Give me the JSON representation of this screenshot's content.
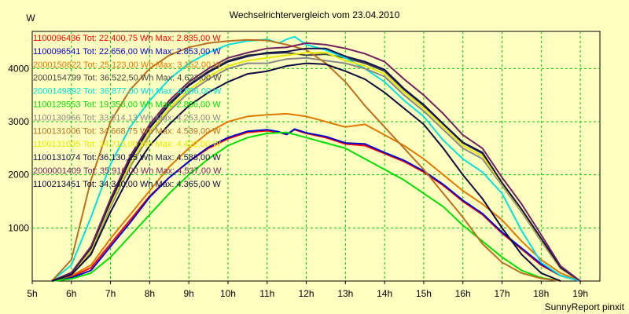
{
  "chart_data": {
    "type": "line",
    "title": "Wechselrichtervergleich vom 23.04.2010",
    "ylabel": "W",
    "xlabel": "",
    "footer": "SunnyReport pinxit",
    "xlim": [
      5,
      19.5
    ],
    "ylim": [
      0,
      4700
    ],
    "x_ticks": [
      5,
      6,
      7,
      8,
      9,
      10,
      11,
      12,
      13,
      14,
      15,
      16,
      17,
      18,
      19
    ],
    "x_tick_labels": [
      "5h",
      "6h",
      "7h",
      "8h",
      "9h",
      "10h",
      "11h",
      "12h",
      "13h",
      "14h",
      "15h",
      "16h",
      "17h",
      "18h",
      "19h"
    ],
    "y_ticks": [
      1000,
      2000,
      3000,
      4000
    ],
    "y_tick_labels": [
      "1000",
      "2000",
      "3000",
      "4000"
    ],
    "grid": true,
    "legend_position": "top-left",
    "series": [
      {
        "id": "1100096436",
        "label": "1100096436 Tot: 22.400,75 Wh Max: 2.835,00 W",
        "color": "#ff0000",
        "group": "low",
        "x": [
          5.5,
          6,
          6.5,
          7,
          7.5,
          8,
          8.5,
          9,
          9.5,
          10,
          10.5,
          11,
          11.3,
          11.5,
          11.7,
          12,
          12.5,
          13,
          13.5,
          14,
          14.5,
          15,
          15.5,
          16,
          16.5,
          17,
          17.5,
          18,
          18.5,
          19
        ],
        "y": [
          0,
          80,
          250,
          700,
          1150,
          1600,
          1950,
          2250,
          2500,
          2680,
          2800,
          2830,
          2800,
          2760,
          2850,
          2780,
          2700,
          2580,
          2550,
          2400,
          2250,
          2050,
          1800,
          1500,
          1250,
          900,
          600,
          300,
          100,
          0
        ]
      },
      {
        "id": "1100096541",
        "label": "1100096541 Tot: 22.656,00 Wh Max: 2.853,00 W",
        "color": "#0000cc",
        "group": "low",
        "x": [
          5.5,
          6,
          6.5,
          7,
          7.5,
          8,
          8.5,
          9,
          9.5,
          10,
          10.5,
          11,
          11.3,
          11.5,
          11.7,
          12,
          12.5,
          13,
          13.5,
          14,
          14.5,
          15,
          15.5,
          16,
          16.5,
          17,
          17.5,
          18,
          18.5,
          19
        ],
        "y": [
          0,
          60,
          200,
          650,
          1100,
          1580,
          1950,
          2250,
          2520,
          2700,
          2820,
          2850,
          2810,
          2760,
          2860,
          2790,
          2720,
          2600,
          2580,
          2420,
          2270,
          2070,
          1820,
          1520,
          1270,
          920,
          620,
          320,
          100,
          0
        ]
      },
      {
        "id": "2000150622",
        "label": "2000150622 Tot: 25.123,00 Wh Max: 3.152,00 W",
        "color": "#e07800",
        "group": "mid",
        "x": [
          5.5,
          6,
          6.5,
          7,
          7.5,
          8,
          8.5,
          9,
          9.5,
          10,
          10.5,
          11,
          11.5,
          12,
          12.5,
          13,
          13.5,
          14,
          14.5,
          15,
          15.5,
          16,
          16.5,
          17,
          17.5,
          18,
          18.5,
          19
        ],
        "y": [
          0,
          100,
          300,
          800,
          1250,
          1700,
          2150,
          2500,
          2800,
          3000,
          3100,
          3130,
          3150,
          3100,
          3000,
          2900,
          2950,
          2750,
          2550,
          2300,
          2000,
          1700,
          1450,
          1150,
          750,
          400,
          150,
          0
        ]
      },
      {
        "id": "2000154799",
        "label": "2000154799 Tot: 36.522,50 Wh Max: 4.623,00 W",
        "color": "#444444",
        "group": "high",
        "x": [
          5.5,
          6,
          6.5,
          7,
          7.5,
          8,
          8.5,
          9,
          9.5,
          10,
          10.5,
          11,
          11.5,
          12,
          12.5,
          13,
          13.5,
          14,
          14.5,
          15,
          15.5,
          16,
          16.5,
          17,
          17.5,
          18,
          18.5,
          19
        ],
        "y": [
          0,
          150,
          600,
          1500,
          2300,
          2900,
          3350,
          3700,
          3950,
          4150,
          4250,
          4280,
          4300,
          4250,
          4270,
          4200,
          4100,
          3950,
          3600,
          3300,
          2950,
          2600,
          2400,
          1850,
          1350,
          800,
          250,
          0
        ]
      },
      {
        "id": "2000149892",
        "label": "2000149892 Tot: 36.877,00 Wh Max: 4.696,00 W",
        "color": "#00e0e0",
        "group": "high",
        "x": [
          5.5,
          6,
          6.5,
          7,
          7.5,
          8,
          8.5,
          9,
          9.5,
          10,
          10.5,
          11,
          11.3,
          11.5,
          11.7,
          12,
          12.5,
          13,
          13.5,
          14,
          14.5,
          15,
          15.5,
          16,
          16.5,
          17,
          17.5,
          18,
          18.5,
          19
        ],
        "y": [
          0,
          300,
          1200,
          2200,
          2900,
          3400,
          3800,
          4100,
          4300,
          4450,
          4520,
          4550,
          4480,
          4550,
          4600,
          4450,
          4350,
          4200,
          4000,
          3750,
          3400,
          3100,
          2650,
          2300,
          2050,
          1650,
          950,
          350,
          100,
          0
        ]
      },
      {
        "id": "1100129553",
        "label": "1100129553 Tot: 19.353,00 Wh Max: 2.866,00 W",
        "color": "#00dd00",
        "group": "green",
        "x": [
          5.5,
          6,
          6.5,
          7,
          7.5,
          8,
          8.5,
          9,
          9.5,
          10,
          10.5,
          11,
          11.5,
          12,
          12.5,
          13,
          13.5,
          14,
          14.5,
          15,
          15.5,
          16,
          16.5,
          17,
          17.5,
          18,
          18.5
        ],
        "y": [
          0,
          40,
          150,
          450,
          850,
          1250,
          1650,
          2000,
          2300,
          2550,
          2700,
          2780,
          2800,
          2700,
          2600,
          2500,
          2300,
          2100,
          1900,
          1650,
          1400,
          1050,
          750,
          450,
          200,
          60,
          0
        ]
      },
      {
        "id": "1100130966",
        "label": "1100130966 Tot: 33.514,13 Wh Max: 4.253,00 W",
        "color": "#888888",
        "group": "high",
        "x": [
          5.5,
          6,
          6.5,
          7,
          7.5,
          8,
          8.5,
          9,
          9.5,
          10,
          10.5,
          11,
          11.5,
          12,
          12.5,
          13,
          13.5,
          14,
          14.5,
          15,
          15.5,
          16,
          16.5,
          17,
          17.5,
          18,
          18.5,
          19
        ],
        "y": [
          0,
          140,
          550,
          1400,
          2150,
          2750,
          3200,
          3550,
          3800,
          4000,
          4100,
          4100,
          4180,
          4200,
          4150,
          4100,
          4000,
          3850,
          3500,
          3200,
          2850,
          2500,
          2300,
          1800,
          1300,
          750,
          230,
          0
        ]
      },
      {
        "id": "1100131006",
        "label": "1100131006 Tot: 34.668,75 Wh Max: 4.539,00 W",
        "color": "#b87020",
        "group": "other",
        "x": [
          5.5,
          6,
          6.5,
          7,
          7.5,
          8,
          8.5,
          9,
          9.5,
          10,
          10.5,
          11,
          11.5,
          12,
          12.5,
          13,
          13.5,
          14,
          14.5,
          15,
          15.5,
          16,
          16.5,
          17,
          17.5,
          18,
          18.5
        ],
        "y": [
          0,
          400,
          1900,
          3000,
          3600,
          4000,
          4250,
          4400,
          4480,
          4520,
          4540,
          4530,
          4450,
          4350,
          4100,
          3750,
          3300,
          2900,
          2500,
          2100,
          1650,
          1200,
          700,
          350,
          150,
          50,
          0
        ]
      },
      {
        "id": "1100131035",
        "label": "1100131035 Tot: 34.715,00 Wh Max: 4.422,00 W",
        "color": "#e8e800",
        "group": "high",
        "x": [
          5.5,
          6,
          6.5,
          7,
          7.5,
          8,
          8.5,
          9,
          9.5,
          10,
          10.5,
          11,
          11.5,
          12,
          12.5,
          13,
          13.5,
          14,
          14.5,
          15,
          15.5,
          16,
          16.5,
          17,
          17.5,
          18,
          18.5,
          19
        ],
        "y": [
          0,
          140,
          580,
          1450,
          2200,
          2800,
          3250,
          3600,
          3850,
          4050,
          4150,
          4200,
          4250,
          4300,
          4300,
          4150,
          4050,
          3900,
          3550,
          3250,
          2900,
          2550,
          2350,
          1830,
          1330,
          780,
          240,
          0
        ]
      },
      {
        "id": "1100131074",
        "label": "1100131074 Tot: 36.130,25 Wh Max: 4.588,00 W",
        "color": "#101050",
        "group": "high",
        "x": [
          5.5,
          6,
          6.5,
          7,
          7.5,
          8,
          8.5,
          9,
          9.5,
          10,
          10.5,
          11,
          11.5,
          12,
          12.5,
          13,
          13.5,
          14,
          14.5,
          15,
          15.5,
          16,
          16.5,
          17,
          17.5,
          18,
          18.5,
          19
        ],
        "y": [
          0,
          150,
          620,
          1500,
          2280,
          2880,
          3320,
          3680,
          3930,
          4130,
          4230,
          4300,
          4320,
          4380,
          4380,
          4230,
          4130,
          3980,
          3620,
          3320,
          2960,
          2610,
          2420,
          1850,
          1350,
          800,
          250,
          0
        ]
      },
      {
        "id": "2000001409",
        "label": "2000001409 Tot: 35.916,00 Wh Max: 4.537,00 W",
        "color": "#702060",
        "group": "high",
        "x": [
          5.5,
          6,
          6.5,
          7,
          7.5,
          8,
          8.5,
          9,
          9.5,
          10,
          10.5,
          11,
          11.5,
          12,
          12.5,
          13,
          13.5,
          14,
          14.5,
          15,
          15.5,
          16,
          16.5,
          17,
          17.5,
          18,
          18.5,
          19
        ],
        "y": [
          0,
          160,
          650,
          1550,
          2350,
          2950,
          3400,
          3750,
          4000,
          4200,
          4300,
          4380,
          4400,
          4480,
          4450,
          4380,
          4280,
          4130,
          3800,
          3500,
          3150,
          2750,
          2500,
          1950,
          1450,
          870,
          280,
          0
        ]
      },
      {
        "id": "1100213451",
        "label": "1100213451 Tot: 34.340,00 Wh Max: 4.365,00 W",
        "color": "#0a0a40",
        "group": "other",
        "x": [
          5.5,
          6,
          6.5,
          7,
          7.5,
          8,
          8.5,
          9,
          9.5,
          10,
          10.5,
          11,
          11.5,
          12,
          12.5,
          13,
          13.5,
          14,
          14.5,
          15,
          15.5,
          16,
          16.5,
          17,
          17.5,
          18,
          18.5
        ],
        "y": [
          0,
          120,
          500,
          1300,
          2000,
          2550,
          2950,
          3300,
          3550,
          3750,
          3900,
          3950,
          4050,
          4100,
          4080,
          3950,
          3800,
          3550,
          3250,
          2950,
          2500,
          2000,
          1550,
          1000,
          500,
          150,
          0
        ]
      }
    ]
  }
}
